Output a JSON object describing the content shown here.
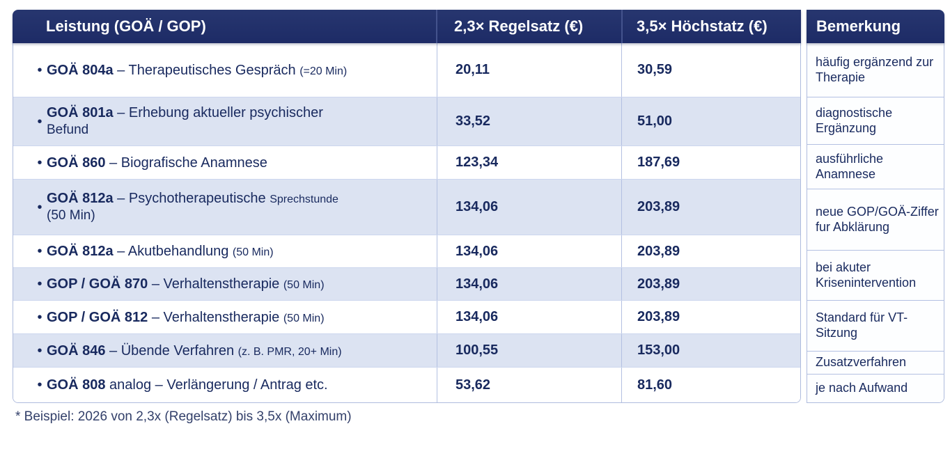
{
  "table": {
    "headers": {
      "leistung": "Leistung (GOÄ / GOP)",
      "regelsatz": "2,3× Regelsatz (€)",
      "hoechstsatz": "3,5× Höchstatz (€)",
      "bemerkung": "Bemerkung"
    },
    "rows": [
      {
        "code": "GOÄ 804a",
        "desc": "– Therapeutisches Gespräch",
        "small": "(=20 Min)",
        "line2": "",
        "regelsatz": "20,11",
        "hoechstsatz": "30,59"
      },
      {
        "code": "GOÄ 801a",
        "desc": "– Erhebung aktueller psychischer",
        "small": "",
        "line2": "Befund",
        "regelsatz": "33,52",
        "hoechstsatz": "51,00"
      },
      {
        "code": "GOÄ 860",
        "desc": "– Biografische Anamnese",
        "small": "",
        "line2": "",
        "regelsatz": "123,34",
        "hoechstsatz": "187,69"
      },
      {
        "code": "GOÄ 812a",
        "desc": "– Psychotherapeutische",
        "small": "Sprechstunde",
        "line2": "(50 Min)",
        "regelsatz": "134,06",
        "hoechstsatz": "203,89"
      },
      {
        "code": "GOÄ 812a",
        "desc": "– Akutbehandlung",
        "small": "(50 Min)",
        "line2": "",
        "regelsatz": "134,06",
        "hoechstsatz": "203,89"
      },
      {
        "code": "GOP / GOÄ 870",
        "desc": "– Verhaltenstherapie",
        "small": "(50 Min)",
        "line2": "",
        "regelsatz": "134,06",
        "hoechstsatz": "203,89"
      },
      {
        "code": "GOP / GOÄ 812",
        "desc": "– Verhaltenstherapie",
        "small": "(50 Min)",
        "line2": "",
        "regelsatz": "134,06",
        "hoechstsatz": "203,89"
      },
      {
        "code": "GOÄ 846",
        "desc": "– Übende Verfahren",
        "small": "(z. B. PMR, 20+ Min)",
        "line2": "",
        "regelsatz": "100,55",
        "hoechstsatz": "153,00"
      },
      {
        "code": "GOÄ 808",
        "desc": "analog – Verlängerung / Antrag etc.",
        "small": "",
        "line2": "",
        "regelsatz": "53,62",
        "hoechstsatz": "81,60"
      }
    ],
    "bemerkungen": [
      "häufig ergänzend zur Therapie",
      "diagnostische Ergänzung",
      "ausführliche Anamnese",
      "neue GOP/GOÄ-Ziffer fur Abklärung",
      "bei akuter Krisenintervention",
      "Standard für VT-Sitzung",
      "Zusatzverfahren",
      "je nach Aufwand"
    ]
  },
  "footnote": "* Beispiel: 2026 von 2,3x (Regelsatz) bis 3,5x (Maximum)",
  "colors": {
    "header_bg": "#1d2b66",
    "stripe_bg": "#dce3f2",
    "text": "#18295e",
    "border": "#aebbdd"
  }
}
